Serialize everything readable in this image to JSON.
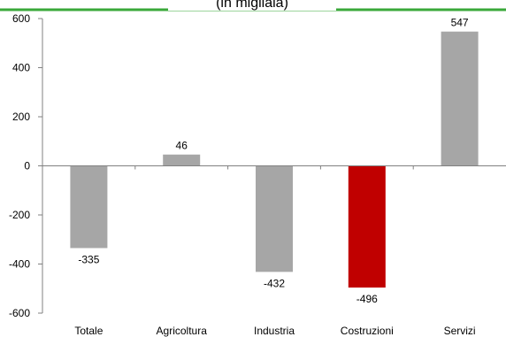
{
  "chart_data": {
    "type": "bar",
    "title_fragment": "(in migliaia)",
    "categories": [
      "Totale",
      "Agricoltura",
      "Industria",
      "Costruzioni",
      "Servizi"
    ],
    "values": [
      -335,
      46,
      -432,
      -496,
      547
    ],
    "value_labels": [
      "-335",
      "46",
      "-432",
      "-496",
      "547"
    ],
    "yticks": [
      600,
      400,
      200,
      0,
      -200,
      -400,
      -600
    ],
    "ytick_labels": [
      "600",
      "400",
      "200",
      "0",
      "-200",
      "-400",
      "-600"
    ],
    "ylim": [
      -600,
      600
    ],
    "colors": {
      "default_bar": "#a6a6a6",
      "highlight_bar": "#c00000",
      "top_rule": "#3aa83a",
      "axis": "#808080"
    },
    "highlight_category": "Costruzioni",
    "grid": false,
    "legend": "none"
  }
}
